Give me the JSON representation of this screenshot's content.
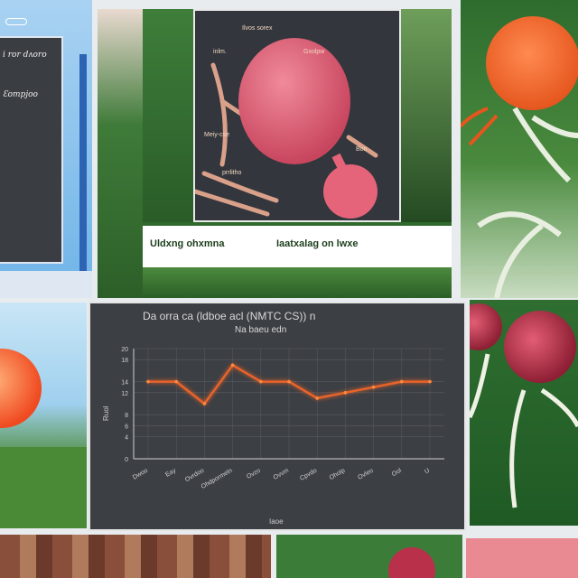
{
  "window_panel": {
    "line1": "i ror dʌoro",
    "line2": "Ɛompjoo"
  },
  "collage": {
    "caption_left": "Uldxng ohxmna",
    "caption_right": "Iaatxalag on lwxe",
    "tags": [
      "Ilvos sorex",
      "inlm.",
      "Gxolpw",
      "Meiy-cse",
      "Bon",
      "prrlitho"
    ]
  },
  "chart_data": {
    "type": "line",
    "title": "Da orra ca (ldboe acl (NMTC CS)) n",
    "subtitle": "Na baeu edn",
    "xlabel": "Iaoe",
    "ylabel": "Ruol",
    "ylim": [
      0,
      20
    ],
    "y_ticks": [
      "20",
      "18",
      "14",
      "12",
      "8",
      "6",
      "4",
      "0"
    ],
    "categories": [
      "Dwoo",
      "Eay",
      "Ovrdoo",
      "Ohdpormeln",
      "Ovzo",
      "Ovvm",
      "Cpvdo",
      "Oholp",
      "Ovleo",
      "Ool",
      "U"
    ],
    "values": [
      14,
      14,
      10,
      17,
      14,
      14,
      11,
      12,
      13,
      14,
      14
    ],
    "colors": {
      "line": "#e8642a",
      "glow": "#ff8a3d",
      "grid": "#5a5d63",
      "axis": "#d0d0d0"
    }
  }
}
